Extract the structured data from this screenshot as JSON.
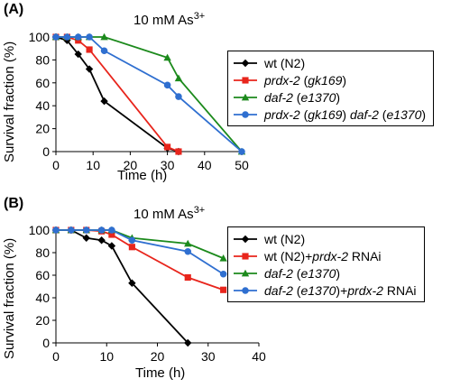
{
  "chart_data": [
    {
      "panel_label": "(A)",
      "condition_prefix": "10 mM As",
      "condition_sup": "3+",
      "type": "line",
      "xlabel": "Time (h)",
      "ylabel": "Survival fraction (%)",
      "xlim": [
        0,
        50
      ],
      "ylim": [
        0,
        100
      ],
      "xticks": [
        "0",
        "10",
        "20",
        "30",
        "40",
        "50"
      ],
      "yticks": [
        "0",
        "20",
        "40",
        "60",
        "80",
        "100"
      ],
      "legend_position": "right",
      "series": [
        {
          "legend_html": "wt (N2)",
          "color": "#000000",
          "marker": "diamond",
          "points": [
            [
              0,
              100
            ],
            [
              3,
              97
            ],
            [
              6,
              85
            ],
            [
              9,
              72
            ],
            [
              13,
              44
            ],
            [
              30,
              3
            ],
            [
              33,
              0
            ]
          ]
        },
        {
          "legend_html": "<i>prdx-2</i> (<i>gk169</i>)",
          "color": "#e8251c",
          "marker": "square",
          "points": [
            [
              0,
              100
            ],
            [
              3,
              100
            ],
            [
              6,
              97
            ],
            [
              9,
              89
            ],
            [
              30,
              4
            ],
            [
              33,
              0
            ]
          ]
        },
        {
          "legend_html": "<i>daf-2</i> (<i>e1370</i>)",
          "color": "#1c8a1c",
          "marker": "triangle",
          "points": [
            [
              0,
              100
            ],
            [
              3,
              100
            ],
            [
              6,
              100
            ],
            [
              9,
              100
            ],
            [
              13,
              100
            ],
            [
              30,
              82
            ],
            [
              33,
              64
            ],
            [
              50,
              0
            ]
          ]
        },
        {
          "legend_html": "<i>prdx-2</i> (<i>gk169</i>) <i>daf-2</i> (<i>e1370</i>)",
          "color": "#2f6fd0",
          "marker": "circle",
          "points": [
            [
              0,
              100
            ],
            [
              3,
              100
            ],
            [
              6,
              100
            ],
            [
              9,
              100
            ],
            [
              13,
              88
            ],
            [
              30,
              58
            ],
            [
              33,
              48
            ],
            [
              50,
              0
            ]
          ]
        }
      ]
    },
    {
      "panel_label": "(B)",
      "condition_prefix": "10 mM As",
      "condition_sup": "3+",
      "type": "line",
      "xlabel": "Time (h)",
      "ylabel": "Survival fraction (%)",
      "xlim": [
        0,
        40
      ],
      "ylim": [
        0,
        100
      ],
      "xticks": [
        "0",
        "10",
        "20",
        "30",
        "40"
      ],
      "yticks": [
        "0",
        "20",
        "40",
        "60",
        "80",
        "100"
      ],
      "legend_position": "right",
      "series": [
        {
          "legend_html": "wt (N2)",
          "color": "#000000",
          "marker": "diamond",
          "points": [
            [
              0,
              100
            ],
            [
              3,
              100
            ],
            [
              6,
              93
            ],
            [
              9,
              91
            ],
            [
              11,
              86
            ],
            [
              15,
              53
            ],
            [
              26,
              0
            ]
          ]
        },
        {
          "legend_html": "wt (N2)+<i>prdx-2</i> RNAi",
          "color": "#e8251c",
          "marker": "square",
          "points": [
            [
              0,
              100
            ],
            [
              3,
              100
            ],
            [
              6,
              100
            ],
            [
              9,
              99
            ],
            [
              11,
              96
            ],
            [
              15,
              85
            ],
            [
              26,
              58
            ],
            [
              33,
              47
            ]
          ]
        },
        {
          "legend_html": "<i>daf-2</i> (<i>e1370</i>)",
          "color": "#1c8a1c",
          "marker": "triangle",
          "points": [
            [
              0,
              100
            ],
            [
              3,
              100
            ],
            [
              6,
              100
            ],
            [
              9,
              100
            ],
            [
              11,
              100
            ],
            [
              15,
              93
            ],
            [
              26,
              88
            ],
            [
              33,
              75
            ]
          ]
        },
        {
          "legend_html": "<i>daf-2</i> (<i>e1370</i>)+<i>prdx-2</i> RNAi",
          "color": "#2f6fd0",
          "marker": "circle",
          "points": [
            [
              0,
              100
            ],
            [
              3,
              100
            ],
            [
              6,
              100
            ],
            [
              9,
              100
            ],
            [
              11,
              100
            ],
            [
              15,
              91
            ],
            [
              26,
              81
            ],
            [
              33,
              61
            ]
          ]
        }
      ]
    }
  ]
}
